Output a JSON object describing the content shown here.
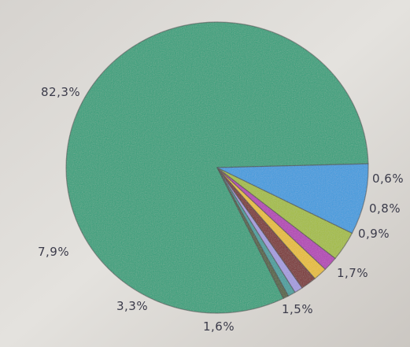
{
  "chart_data": {
    "type": "pie",
    "title": "",
    "slices": [
      {
        "label": "82,3%",
        "value": 82.3,
        "color": "#2fa07a"
      },
      {
        "label": "0,6%",
        "value": 0.6,
        "color": "#4f5e3a"
      },
      {
        "label": "0,8%",
        "value": 0.8,
        "color": "#3f9e9c"
      },
      {
        "label": "0,9%",
        "value": 0.9,
        "color": "#a49be0"
      },
      {
        "label": "1,7%",
        "value": 1.7,
        "color": "#7a2c2c"
      },
      {
        "label": "1,5%",
        "value": 1.5,
        "color": "#e9be2a"
      },
      {
        "label": "1,6%",
        "value": 1.6,
        "color": "#b43bb6"
      },
      {
        "label": "3,3%",
        "value": 3.3,
        "color": "#a4be3c"
      },
      {
        "label": "7,9%",
        "value": 7.9,
        "color": "#3a9be0"
      }
    ],
    "legend": "none",
    "grid": false
  }
}
